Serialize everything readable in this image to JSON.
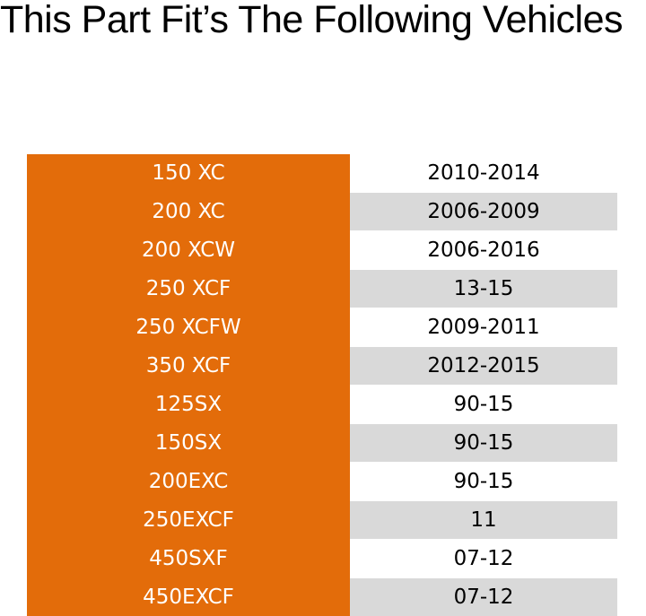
{
  "header": {
    "title": "This Part Fit’s The Following Vehicles"
  },
  "table": {
    "rows": [
      [
        "150 XC",
        "2010-2014"
      ],
      [
        "200 XC",
        "2006-2009"
      ],
      [
        "200 XCW",
        "2006-2016"
      ],
      [
        "250 XCF",
        "13-15"
      ],
      [
        "250 XCFW",
        "2009-2011"
      ],
      [
        "350 XCF",
        "2012-2015"
      ],
      [
        "125SX",
        "90-15"
      ],
      [
        "150SX",
        "90-15"
      ],
      [
        "200EXC",
        "90-15"
      ],
      [
        "250EXCF",
        "11"
      ],
      [
        "450SXF",
        "07-12"
      ],
      [
        "450EXCF",
        "07-12"
      ]
    ]
  }
}
